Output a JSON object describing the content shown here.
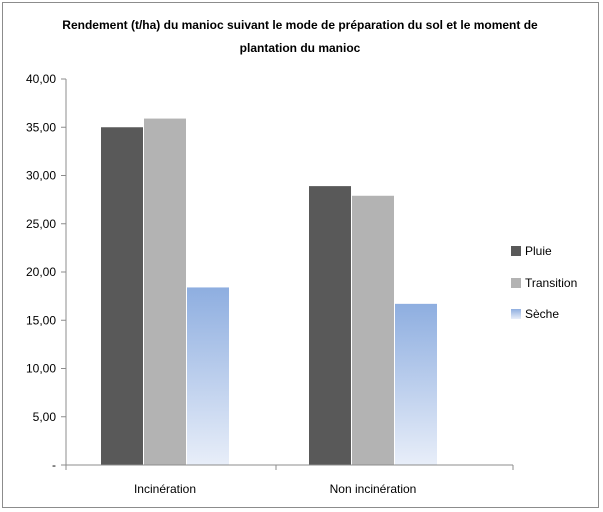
{
  "chart_data": {
    "type": "bar",
    "title": "Rendement (t/ha) du manioc suivant le mode de préparation du sol et le moment de plantation du manioc",
    "title_lines": [
      "Rendement (t/ha) du manioc suivant le mode de préparation du sol et le moment de",
      "plantation du manioc"
    ],
    "categories": [
      "Incinération",
      "Non incinération"
    ],
    "series": [
      {
        "name": "Pluie",
        "values": [
          35.0,
          28.9
        ],
        "color": "#595959"
      },
      {
        "name": "Transition",
        "values": [
          35.9,
          27.9
        ],
        "color": "#b3b3b3"
      },
      {
        "name": "Sèche",
        "values": [
          18.4,
          16.7
        ],
        "color": "#94b3e3"
      }
    ],
    "ylim": [
      0,
      40
    ],
    "yticks": [
      "-",
      "5,00",
      "10,00",
      "15,00",
      "20,00",
      "25,00",
      "30,00",
      "35,00",
      "40,00"
    ],
    "xlabel": "",
    "ylabel": "",
    "grid": false,
    "legend_position": "right"
  }
}
